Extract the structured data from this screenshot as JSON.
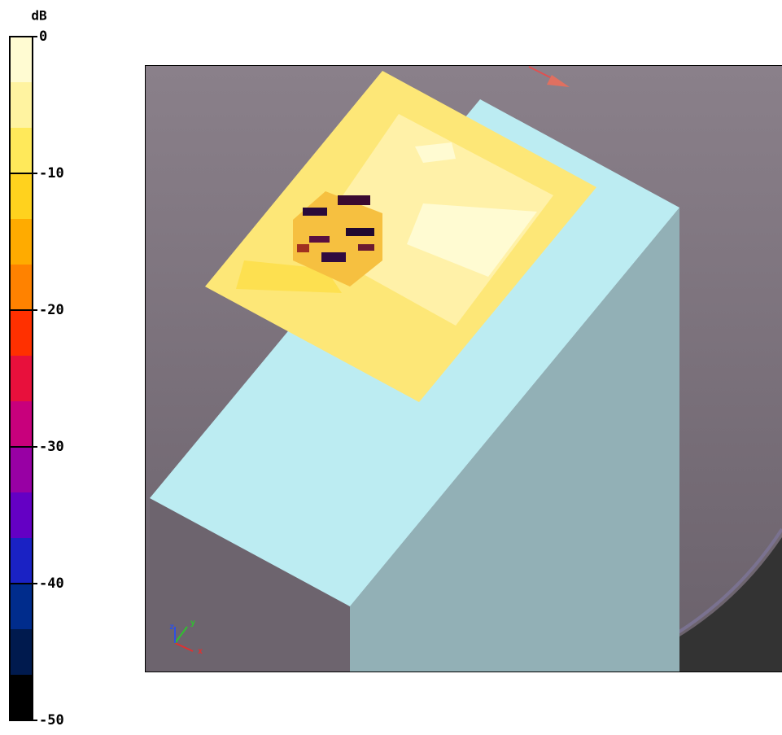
{
  "colorbar": {
    "title": "dB",
    "lim": [
      0,
      -50
    ],
    "ticks": [
      0,
      -10,
      -20,
      -30,
      -40,
      -50
    ],
    "colors": [
      "#fffbd2",
      "#fff3a0",
      "#ffe95a",
      "#ffd21e",
      "#ffab00",
      "#ff8200",
      "#ff3000",
      "#e8103c",
      "#c8007c",
      "#9800a4",
      "#6400c4",
      "#1a22c4",
      "#002c8c",
      "#001a4e",
      "#000000"
    ]
  },
  "axes_triad": {
    "x": "x",
    "y": "y",
    "z": "z"
  }
}
